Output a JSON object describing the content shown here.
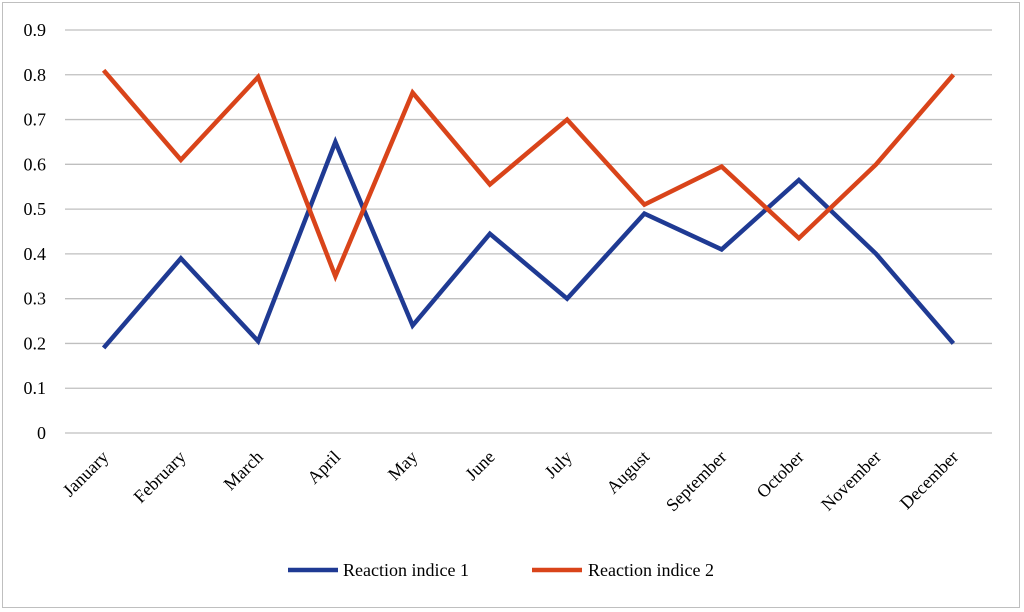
{
  "chart_data": {
    "type": "line",
    "title": "",
    "xlabel": "",
    "ylabel": "",
    "categories": [
      "January",
      "February",
      "March",
      "April",
      "May",
      "June",
      "July",
      "August",
      "September",
      "October",
      "November",
      "December"
    ],
    "series": [
      {
        "name": "Reaction indice 1",
        "color": "#1f3a93",
        "values": [
          0.19,
          0.39,
          0.205,
          0.65,
          0.24,
          0.445,
          0.3,
          0.49,
          0.41,
          0.565,
          0.4,
          0.2
        ]
      },
      {
        "name": "Reaction indice 2",
        "color": "#d9441a",
        "values": [
          0.81,
          0.61,
          0.795,
          0.35,
          0.76,
          0.555,
          0.7,
          0.51,
          0.595,
          0.435,
          0.6,
          0.8
        ]
      }
    ],
    "ylim": [
      0,
      0.9
    ],
    "yticks": [
      "0",
      "0.1",
      "0.2",
      "0.3",
      "0.4",
      "0.5",
      "0.6",
      "0.7",
      "0.8",
      "0.9"
    ],
    "grid": true,
    "legend_position": "bottom"
  }
}
